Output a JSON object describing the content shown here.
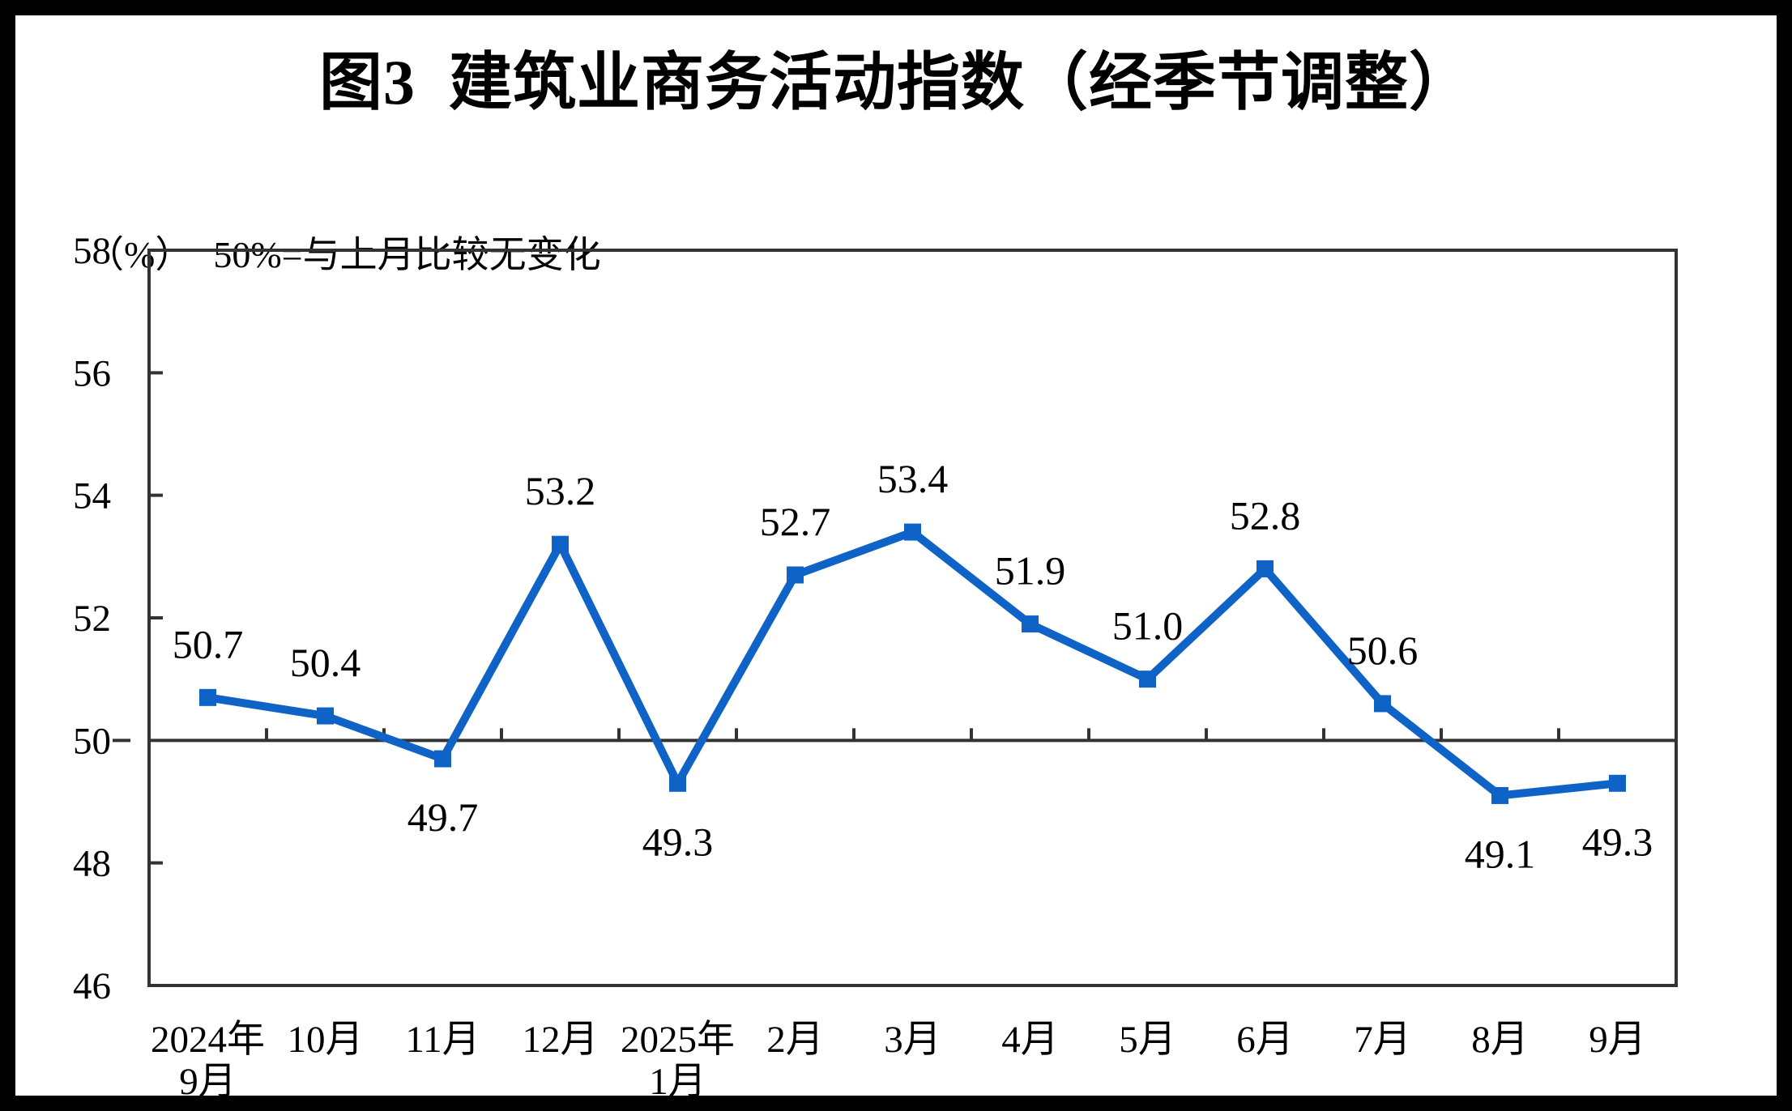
{
  "chart_data": {
    "type": "line",
    "title": "图3  建筑业商务活动指数（经季节调整）",
    "unit_label": "（%）",
    "note": "50%=与上月比较无变化",
    "categories": [
      [
        "2024年",
        "9月"
      ],
      [
        "10月"
      ],
      [
        "11月"
      ],
      [
        "12月"
      ],
      [
        "2025年",
        "1月"
      ],
      [
        "2月"
      ],
      [
        "3月"
      ],
      [
        "4月"
      ],
      [
        "5月"
      ],
      [
        "6月"
      ],
      [
        "7月"
      ],
      [
        "8月"
      ],
      [
        "9月"
      ]
    ],
    "values": [
      50.7,
      50.4,
      49.7,
      53.2,
      49.3,
      52.7,
      53.4,
      51.9,
      51.0,
      52.8,
      50.6,
      49.1,
      49.3
    ],
    "point_labels": [
      "50.7",
      "50.4",
      "49.7",
      "53.2",
      "49.3",
      "52.7",
      "53.4",
      "51.9",
      "51.0",
      "52.8",
      "50.6",
      "49.1",
      "49.3"
    ],
    "label_below": [
      false,
      false,
      true,
      false,
      true,
      false,
      false,
      false,
      false,
      false,
      false,
      true,
      true
    ],
    "ylim": [
      46,
      58
    ],
    "yticks": [
      58,
      56,
      54,
      52,
      50,
      48,
      46
    ],
    "reference_line": 50,
    "series_color": "#1063C6",
    "axis_color": "#333333",
    "marker": "square",
    "grid": "off",
    "legend": "none"
  }
}
